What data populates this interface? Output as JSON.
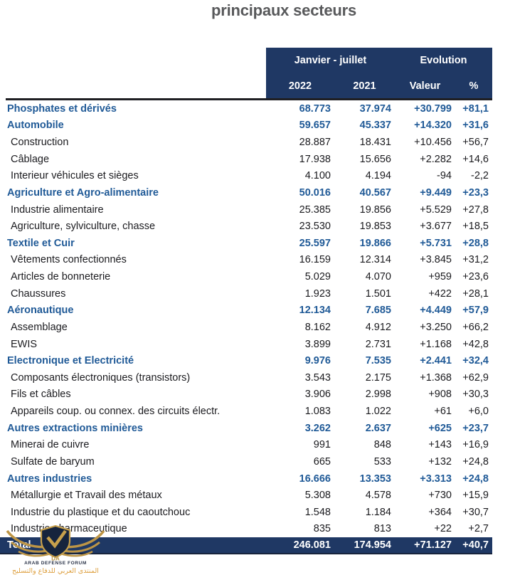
{
  "title": "principaux secteurs",
  "table": {
    "header": {
      "group_janvier": "Janvier - juillet",
      "group_evolution": "Evolution",
      "col_2022": "2022",
      "col_2021": "2021",
      "col_valeur": "Valeur",
      "col_pct": "%"
    },
    "rows": [
      {
        "label": "Phosphates et dérivés",
        "bold": true,
        "v2022": "68.773",
        "v2021": "37.974",
        "valeur": "+30.799",
        "pct": "+81,1"
      },
      {
        "label": "Automobile",
        "bold": true,
        "v2022": "59.657",
        "v2021": "45.337",
        "valeur": "+14.320",
        "pct": "+31,6"
      },
      {
        "label": "Construction",
        "bold": false,
        "v2022": "28.887",
        "v2021": "18.431",
        "valeur": "+10.456",
        "pct": "+56,7"
      },
      {
        "label": "Câblage",
        "bold": false,
        "v2022": "17.938",
        "v2021": "15.656",
        "valeur": "+2.282",
        "pct": "+14,6"
      },
      {
        "label": "Interieur véhicules et sièges",
        "bold": false,
        "v2022": "4.100",
        "v2021": "4.194",
        "valeur": "-94",
        "pct": "-2,2"
      },
      {
        "label": "Agriculture et Agro-alimentaire",
        "bold": true,
        "v2022": "50.016",
        "v2021": "40.567",
        "valeur": "+9.449",
        "pct": "+23,3"
      },
      {
        "label": "Industrie alimentaire",
        "bold": false,
        "v2022": "25.385",
        "v2021": "19.856",
        "valeur": "+5.529",
        "pct": "+27,8"
      },
      {
        "label": "Agriculture, sylviculture, chasse",
        "bold": false,
        "v2022": "23.530",
        "v2021": "19.853",
        "valeur": "+3.677",
        "pct": "+18,5"
      },
      {
        "label": "Textile et Cuir",
        "bold": true,
        "v2022": "25.597",
        "v2021": "19.866",
        "valeur": "+5.731",
        "pct": "+28,8"
      },
      {
        "label": "Vêtements confectionnés",
        "bold": false,
        "v2022": "16.159",
        "v2021": "12.314",
        "valeur": "+3.845",
        "pct": "+31,2"
      },
      {
        "label": "Articles de bonneterie",
        "bold": false,
        "v2022": "5.029",
        "v2021": "4.070",
        "valeur": "+959",
        "pct": "+23,6"
      },
      {
        "label": "Chaussures",
        "bold": false,
        "v2022": "1.923",
        "v2021": "1.501",
        "valeur": "+422",
        "pct": "+28,1"
      },
      {
        "label": "Aéronautique",
        "bold": true,
        "v2022": "12.134",
        "v2021": "7.685",
        "valeur": "+4.449",
        "pct": "+57,9"
      },
      {
        "label": "Assemblage",
        "bold": false,
        "v2022": "8.162",
        "v2021": "4.912",
        "valeur": "+3.250",
        "pct": "+66,2"
      },
      {
        "label": "EWIS",
        "bold": false,
        "v2022": "3.899",
        "v2021": "2.731",
        "valeur": "+1.168",
        "pct": "+42,8"
      },
      {
        "label": "Electronique et Electricité",
        "bold": true,
        "v2022": "9.976",
        "v2021": "7.535",
        "valeur": "+2.441",
        "pct": "+32,4"
      },
      {
        "label": "Composants électroniques (transistors)",
        "bold": false,
        "v2022": "3.543",
        "v2021": "2.175",
        "valeur": "+1.368",
        "pct": "+62,9"
      },
      {
        "label": "Fils et câbles",
        "bold": false,
        "v2022": "3.906",
        "v2021": "2.998",
        "valeur": "+908",
        "pct": "+30,3"
      },
      {
        "label": "Appareils coup. ou connex. des circuits électr.",
        "bold": false,
        "v2022": "1.083",
        "v2021": "1.022",
        "valeur": "+61",
        "pct": "+6,0"
      },
      {
        "label": "Autres extractions minières",
        "bold": true,
        "v2022": "3.262",
        "v2021": "2.637",
        "valeur": "+625",
        "pct": "+23,7"
      },
      {
        "label": "Minerai de cuivre",
        "bold": false,
        "v2022": "991",
        "v2021": "848",
        "valeur": "+143",
        "pct": "+16,9"
      },
      {
        "label": "Sulfate de baryum",
        "bold": false,
        "v2022": "665",
        "v2021": "533",
        "valeur": "+132",
        "pct": "+24,8"
      },
      {
        "label": "Autres industries",
        "bold": true,
        "v2022": "16.666",
        "v2021": "13.353",
        "valeur": "+3.313",
        "pct": "+24,8"
      },
      {
        "label": "Métallurgie et Travail des métaux",
        "bold": false,
        "v2022": "5.308",
        "v2021": "4.578",
        "valeur": "+730",
        "pct": "+15,9"
      },
      {
        "label": "Industrie du plastique et du caoutchouc",
        "bold": false,
        "v2022": "1.548",
        "v2021": "1.184",
        "valeur": "+364",
        "pct": "+30,7"
      },
      {
        "label": "Industrie pharmaceutique",
        "bold": false,
        "v2022": "835",
        "v2021": "813",
        "valeur": "+22",
        "pct": "+2,7"
      }
    ],
    "total": {
      "label": "Total",
      "v2022": "246.081",
      "v2021": "174.954",
      "valeur": "+71.127",
      "pct": "+40,7"
    }
  },
  "watermark": {
    "monogram": "DA",
    "name_en": "ARAB DEFENSE FORUM",
    "name_ar": "المنتدى العربي للدفاع والتسليح"
  },
  "colors": {
    "header_navy": "#1F3864",
    "section_blue": "#205A97",
    "body_text": "#1B1B1F",
    "title_gray": "#58595B",
    "logo_gold": "#BD9546",
    "arabic_gold": "#DD9E3C"
  }
}
